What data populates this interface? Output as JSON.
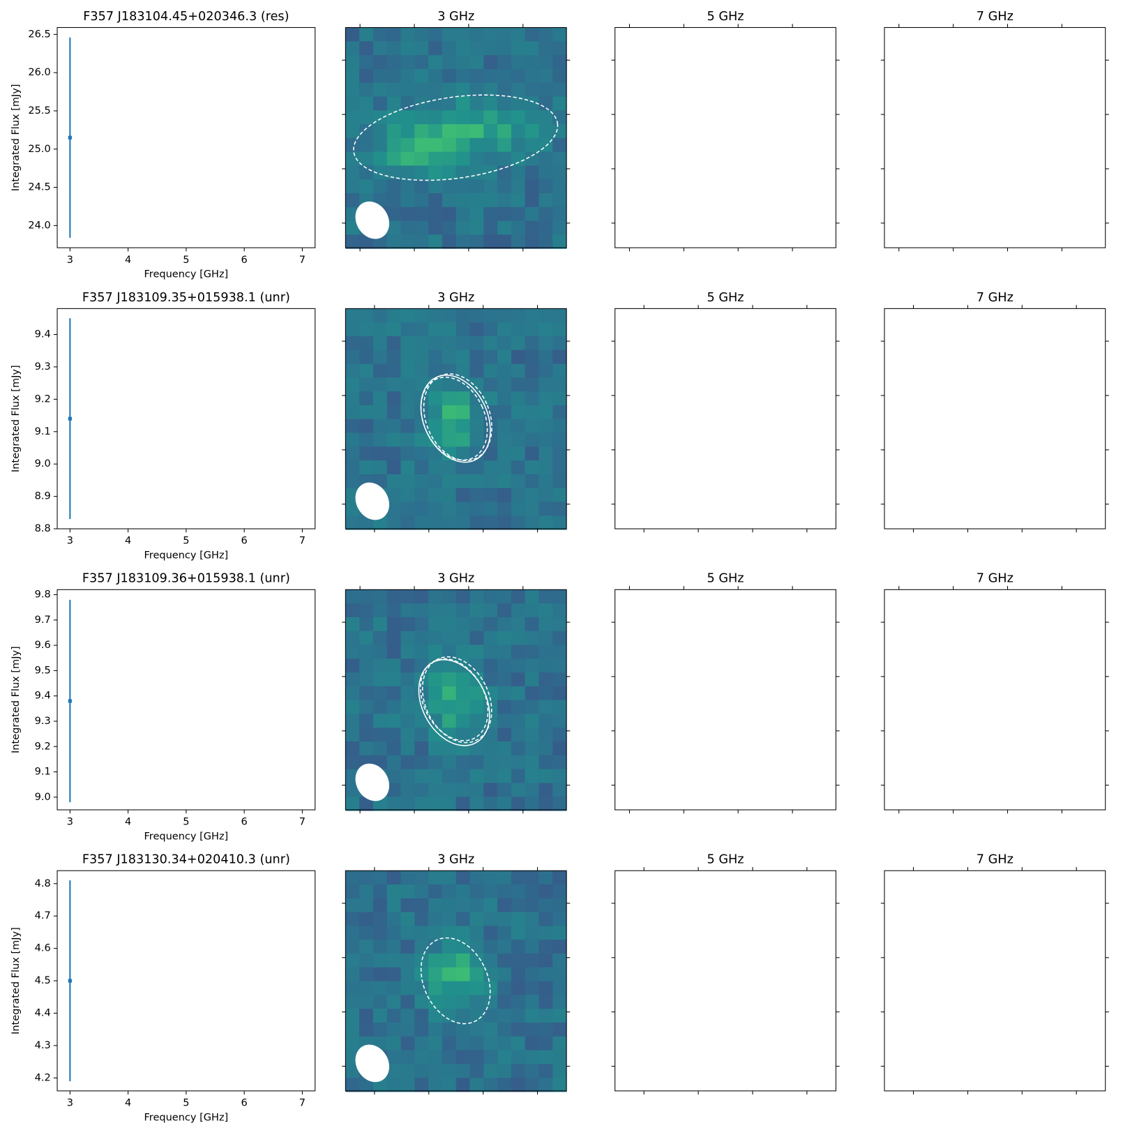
{
  "chart_data": [
    {
      "type": "errorbar",
      "title": "F357 J183104.45+020346.3 (res)",
      "x_label": "Frequency [GHz]",
      "y_label": "Integrated Flux [mJy]",
      "x": [
        3
      ],
      "values": [
        25.15
      ],
      "errors": [
        1.31
      ],
      "color": "#1f77b4",
      "xlim": [
        2.78,
        7.22
      ],
      "xticks": [
        3,
        4,
        5,
        6,
        7
      ],
      "ylim": [
        23.71,
        26.59
      ],
      "yticks": [
        {
          "value": 24,
          "label": "24.0"
        },
        24.5,
        {
          "value": 25,
          "label": "25.0"
        },
        25.5,
        {
          "value": 26,
          "label": "26.0"
        },
        26.5
      ]
    },
    {
      "type": "image",
      "title": "3 GHz"
    },
    {
      "type": "image",
      "title": "5 GHz"
    },
    {
      "type": "image",
      "title": "7 GHz"
    },
    {
      "type": "errorbar",
      "title": "F357 J183109.35+015938.1 (unr)",
      "x_label": "Frequency [GHz]",
      "y_label": "Integrated Flux [mJy]",
      "x": [
        3
      ],
      "values": [
        9.14
      ],
      "errors": [
        0.31
      ],
      "color": "#1f77b4",
      "xlim": [
        2.78,
        7.22
      ],
      "xticks": [
        3,
        4,
        5,
        6,
        7
      ],
      "ylim": [
        8.8,
        9.48
      ],
      "yticks": [
        8.8,
        8.9,
        {
          "value": 9,
          "label": "9.0"
        },
        9.1,
        9.2,
        9.3,
        9.4
      ]
    },
    {
      "type": "image",
      "title": "3 GHz"
    },
    {
      "type": "image",
      "title": "5 GHz"
    },
    {
      "type": "image",
      "title": "7 GHz"
    },
    {
      "type": "errorbar",
      "title": "F357 J183109.36+015938.1 (unr)",
      "x_label": "Frequency [GHz]",
      "y_label": "Integrated Flux [mJy]",
      "x": [
        3
      ],
      "values": [
        9.38
      ],
      "errors": [
        0.4
      ],
      "color": "#1f77b4",
      "xlim": [
        2.78,
        7.22
      ],
      "xticks": [
        3,
        4,
        5,
        6,
        7
      ],
      "ylim": [
        8.95,
        9.82
      ],
      "yticks": [
        {
          "value": 9,
          "label": "9.0"
        },
        9.1,
        9.2,
        9.3,
        9.4,
        9.5,
        9.6,
        9.7,
        9.8
      ]
    },
    {
      "type": "image",
      "title": "3 GHz"
    },
    {
      "type": "image",
      "title": "5 GHz"
    },
    {
      "type": "image",
      "title": "7 GHz"
    },
    {
      "type": "errorbar",
      "title": "F357 J183130.34+020410.3 (unr)",
      "x_label": "Frequency [GHz]",
      "y_label": "Integrated Flux [mJy]",
      "x": [
        3
      ],
      "values": [
        4.5
      ],
      "errors": [
        0.31
      ],
      "color": "#1f77b4",
      "xlim": [
        2.78,
        7.22
      ],
      "xticks": [
        3,
        4,
        5,
        6,
        7
      ],
      "ylim": [
        4.16,
        4.84
      ],
      "yticks": [
        4.2,
        4.3,
        4.4,
        4.5,
        4.6,
        4.7,
        4.8
      ]
    },
    {
      "type": "image",
      "title": "3 GHz"
    },
    {
      "type": "image",
      "title": "5 GHz"
    },
    {
      "type": "image",
      "title": "7 GHz"
    }
  ]
}
